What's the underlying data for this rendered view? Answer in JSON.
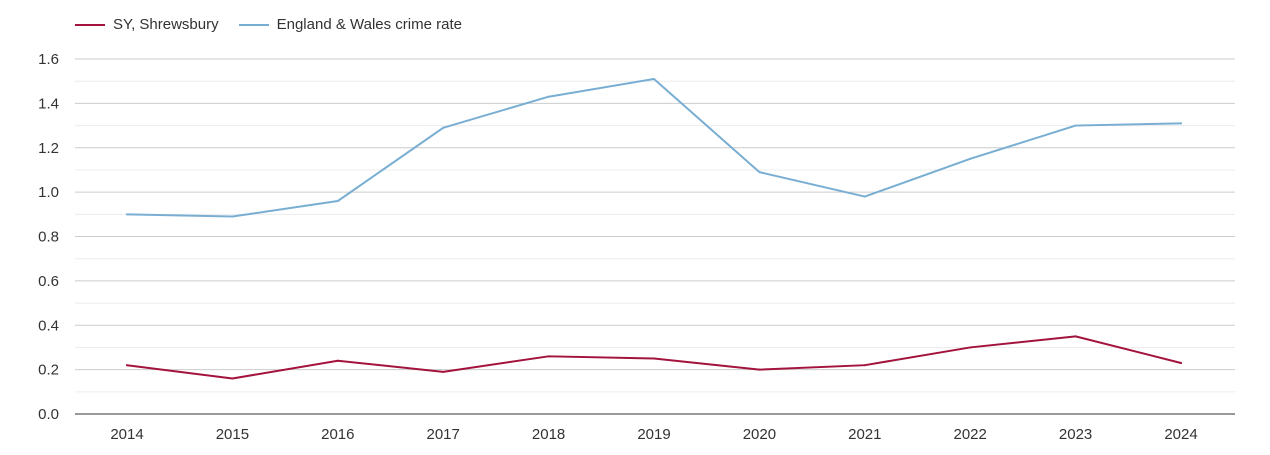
{
  "chart_data": {
    "type": "line",
    "title": "",
    "xlabel": "",
    "ylabel": "",
    "categories": [
      "2014",
      "2015",
      "2016",
      "2017",
      "2018",
      "2019",
      "2020",
      "2021",
      "2022",
      "2023",
      "2024"
    ],
    "ylim": [
      0,
      1.6
    ],
    "yticks": [
      "0.0",
      "0.2",
      "0.4",
      "0.6",
      "0.8",
      "1.0",
      "1.2",
      "1.4",
      "1.6"
    ],
    "grid": true,
    "legend_position": "top-left",
    "series": [
      {
        "name": "SY, Shrewsbury",
        "color": "#a3133d",
        "values": [
          0.22,
          0.16,
          0.24,
          0.19,
          0.26,
          0.25,
          0.2,
          0.22,
          0.3,
          0.35,
          0.23
        ]
      },
      {
        "name": "England & Wales crime rate",
        "color": "#79aed3",
        "values": [
          0.9,
          0.89,
          0.96,
          1.29,
          1.43,
          1.51,
          1.09,
          0.98,
          1.15,
          1.3,
          1.31
        ]
      }
    ]
  }
}
